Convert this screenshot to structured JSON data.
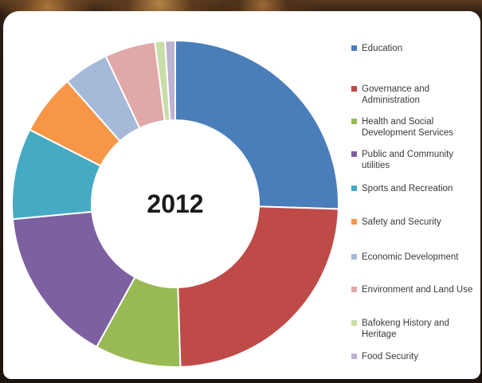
{
  "chart_data": {
    "type": "pie",
    "donut": true,
    "center_label": "2012",
    "legend_position": "right",
    "categories": [
      "Education",
      "Governance and Administration",
      "Health and Social Development Services",
      "Public and Community utilities",
      "Sports and Recreation",
      "Safety and Security",
      "Economic Development",
      "Environment and Land Use",
      "Bafokeng History and Heritage",
      "Food Security"
    ],
    "values": [
      25.5,
      24.0,
      8.5,
      15.5,
      9.0,
      6.0,
      4.5,
      5.0,
      1.0,
      1.0
    ],
    "colors": [
      "#4a7ebb",
      "#be4b48",
      "#98b954",
      "#7d60a0",
      "#46aac5",
      "#f79646",
      "#a5b9d9",
      "#e1a8a8",
      "#c9dea7",
      "#bfb1d4"
    ]
  }
}
